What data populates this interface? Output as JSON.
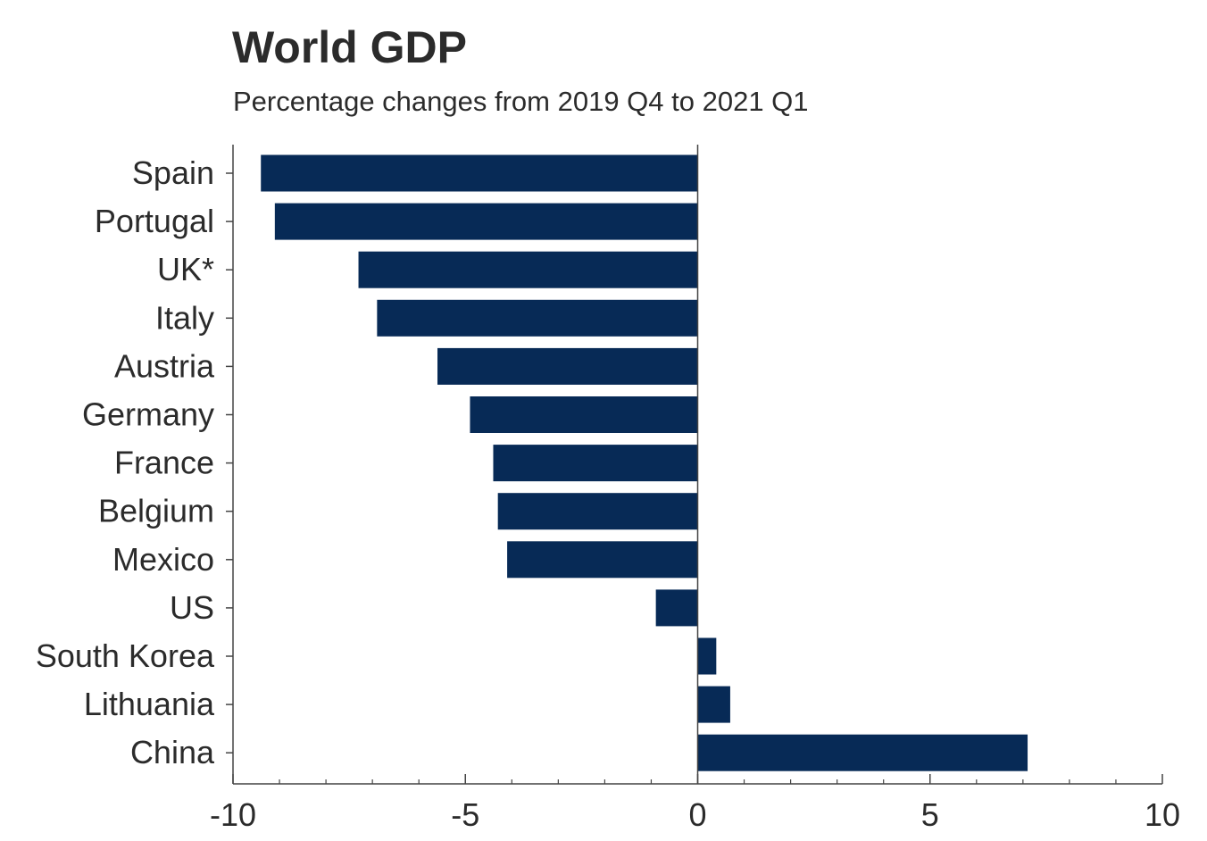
{
  "chart_data": {
    "type": "bar",
    "orientation": "horizontal",
    "title": "World GDP",
    "subtitle": "Percentage changes from 2019 Q4 to 2021 Q1",
    "xlabel": "",
    "ylabel": "",
    "categories": [
      "Spain",
      "Portugal",
      "UK*",
      "Italy",
      "Austria",
      "Germany",
      "France",
      "Belgium",
      "Mexico",
      "US",
      "South Korea",
      "Lithuania",
      "China"
    ],
    "values": [
      -9.4,
      -9.1,
      -7.3,
      -6.9,
      -5.6,
      -4.9,
      -4.4,
      -4.3,
      -4.1,
      -0.9,
      0.4,
      0.7,
      7.1
    ],
    "xlim": [
      -10,
      10
    ],
    "xticks": [
      -10,
      -5,
      0,
      5,
      10
    ],
    "xtick_labels": [
      "-10",
      "-5",
      "0",
      "5",
      "10"
    ],
    "minor_tick_step": 1,
    "grid": false,
    "legend": "none",
    "bar_color": "#072a56"
  }
}
